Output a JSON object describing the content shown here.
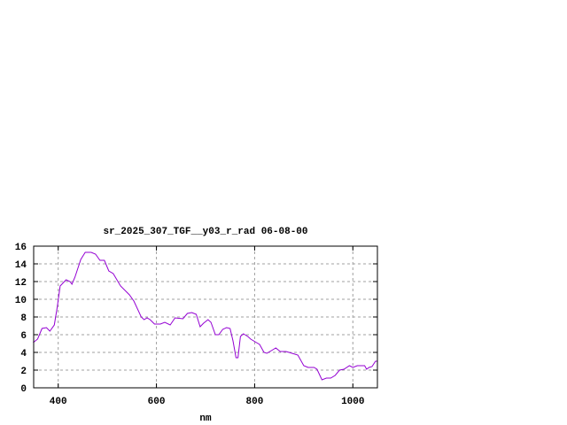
{
  "chart_data": {
    "type": "line",
    "title": "sr_2025_307_TGF__y03_r_rad 06-08-00",
    "xlabel": "nm",
    "ylabel": "",
    "xlim": [
      350,
      1050
    ],
    "ylim": [
      0,
      16
    ],
    "xticks": [
      400,
      600,
      800,
      1000
    ],
    "yticks": [
      0,
      2,
      4,
      6,
      8,
      10,
      12,
      14,
      16
    ],
    "grid": true,
    "line_color": "#9400d3",
    "series": [
      {
        "x": [
          349,
          358,
          367,
          376,
          383,
          392,
          398,
          404,
          416,
          424,
          428,
          434,
          446,
          455,
          467,
          476,
          485,
          494,
          503,
          512,
          527,
          545,
          554,
          569,
          575,
          581,
          587,
          596,
          608,
          617,
          628,
          638,
          654,
          663,
          672,
          681,
          689,
          696,
          705,
          711,
          720,
          727,
          735,
          743,
          750,
          756,
          762,
          766,
          771,
          777,
          786,
          792,
          804,
          810,
          819,
          825,
          834,
          843,
          852,
          864,
          876,
          888,
          900,
          909,
          921,
          927,
          937,
          946,
          955,
          964,
          973,
          982,
          993,
          1000,
          1009,
          1024,
          1028,
          1033,
          1039,
          1046,
          1050
        ],
        "y": [
          5.1,
          5.5,
          6.7,
          6.8,
          6.4,
          7.1,
          9.1,
          11.5,
          12.2,
          12.0,
          11.7,
          12.5,
          14.5,
          15.3,
          15.3,
          15.1,
          14.4,
          14.4,
          13.2,
          12.9,
          11.5,
          10.5,
          9.8,
          8.0,
          7.7,
          7.9,
          7.7,
          7.2,
          7.2,
          7.4,
          7.1,
          7.9,
          7.8,
          8.4,
          8.5,
          8.3,
          6.9,
          7.3,
          7.7,
          7.4,
          6.0,
          6.0,
          6.6,
          6.8,
          6.7,
          5.3,
          3.4,
          3.4,
          5.8,
          6.1,
          5.8,
          5.5,
          5.1,
          4.9,
          4.0,
          3.9,
          4.2,
          4.5,
          4.1,
          4.1,
          3.9,
          3.7,
          2.5,
          2.3,
          2.3,
          2.1,
          0.9,
          1.1,
          1.1,
          1.4,
          2.0,
          2.1,
          2.5,
          2.3,
          2.5,
          2.5,
          2.1,
          2.3,
          2.4,
          3.0,
          3.0
        ]
      }
    ]
  }
}
